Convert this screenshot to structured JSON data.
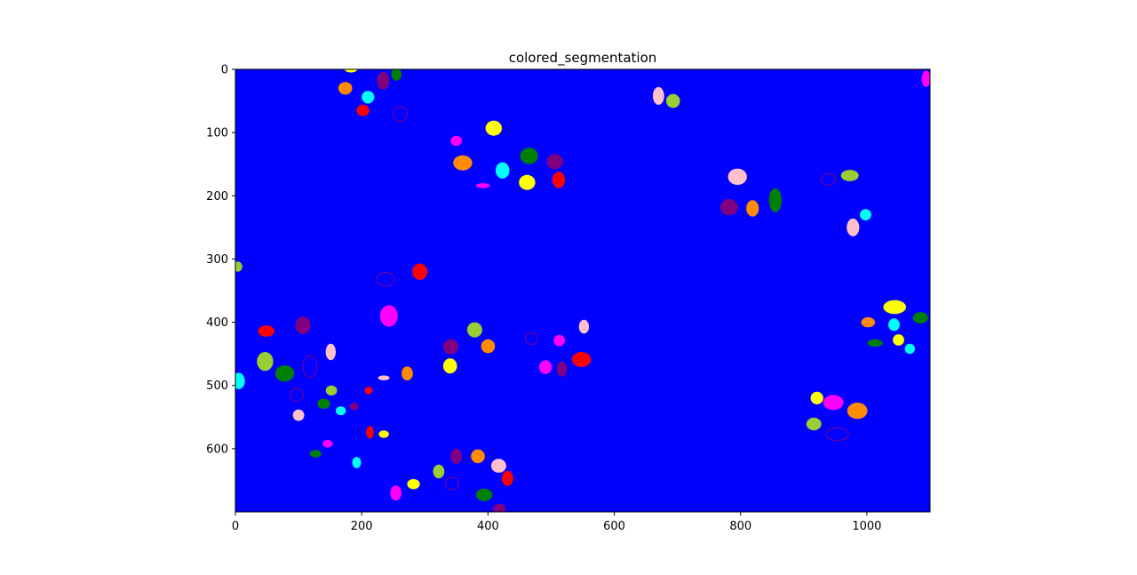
{
  "chart_data": {
    "type": "heatmap",
    "title": "colored_segmentation",
    "xlabel": "",
    "ylabel": "",
    "xlim": [
      0,
      1100
    ],
    "ylim": [
      700,
      0
    ],
    "x_ticks": [
      0,
      200,
      400,
      600,
      800,
      1000
    ],
    "y_ticks": [
      0,
      100,
      200,
      300,
      400,
      500,
      600
    ],
    "grid": false,
    "background_color": "#0000ff",
    "segment_colors": {
      "yellow": "#ffff00",
      "orange": "#ff8c00",
      "red": "#ff0000",
      "green": "#008000",
      "magenta": "#ff00ff",
      "cyan": "#00ffff",
      "pink": "#ffc0cb",
      "yellowgreen": "#9acd32",
      "purple": "#800080"
    },
    "segments": [
      {
        "x": 183,
        "y": 0,
        "rx": 10,
        "ry": 5,
        "color": "yellow"
      },
      {
        "x": 255,
        "y": 8,
        "rx": 8,
        "ry": 10,
        "color": "green"
      },
      {
        "x": 234,
        "y": 18,
        "rx": 10,
        "ry": 14,
        "color": "purple"
      },
      {
        "x": 174,
        "y": 30,
        "rx": 11,
        "ry": 10,
        "color": "orange"
      },
      {
        "x": 210,
        "y": 44,
        "rx": 10,
        "ry": 10,
        "color": "cyan"
      },
      {
        "x": 202,
        "y": 65,
        "rx": 10,
        "ry": 9,
        "color": "red"
      },
      {
        "x": 261,
        "y": 71,
        "rx": 11,
        "ry": 12,
        "color": "purple",
        "outline": true
      },
      {
        "x": 1094,
        "y": 15,
        "rx": 7,
        "ry": 13,
        "color": "magenta"
      },
      {
        "x": 670,
        "y": 42,
        "rx": 9,
        "ry": 14,
        "color": "pink"
      },
      {
        "x": 693,
        "y": 50,
        "rx": 11,
        "ry": 11,
        "color": "yellowgreen"
      },
      {
        "x": 409,
        "y": 93,
        "rx": 13,
        "ry": 12,
        "color": "yellow"
      },
      {
        "x": 350,
        "y": 113,
        "rx": 9,
        "ry": 8,
        "color": "magenta"
      },
      {
        "x": 360,
        "y": 148,
        "rx": 15,
        "ry": 12,
        "color": "orange"
      },
      {
        "x": 423,
        "y": 160,
        "rx": 11,
        "ry": 13,
        "color": "cyan"
      },
      {
        "x": 465,
        "y": 137,
        "rx": 14,
        "ry": 13,
        "color": "green"
      },
      {
        "x": 506,
        "y": 146,
        "rx": 13,
        "ry": 12,
        "color": "purple"
      },
      {
        "x": 462,
        "y": 179,
        "rx": 13,
        "ry": 12,
        "color": "yellow"
      },
      {
        "x": 512,
        "y": 175,
        "rx": 10,
        "ry": 13,
        "color": "red"
      },
      {
        "x": 392,
        "y": 184,
        "rx": 11,
        "ry": 4,
        "color": "magenta"
      },
      {
        "x": 795,
        "y": 170,
        "rx": 15,
        "ry": 13,
        "color": "pink"
      },
      {
        "x": 782,
        "y": 218,
        "rx": 14,
        "ry": 13,
        "color": "purple"
      },
      {
        "x": 819,
        "y": 220,
        "rx": 10,
        "ry": 13,
        "color": "orange"
      },
      {
        "x": 855,
        "y": 207,
        "rx": 10,
        "ry": 19,
        "color": "green"
      },
      {
        "x": 939,
        "y": 174,
        "rx": 11,
        "ry": 9,
        "color": "purple",
        "outline": true
      },
      {
        "x": 973,
        "y": 168,
        "rx": 14,
        "ry": 9,
        "color": "yellowgreen"
      },
      {
        "x": 998,
        "y": 230,
        "rx": 9,
        "ry": 9,
        "color": "cyan"
      },
      {
        "x": 978,
        "y": 250,
        "rx": 10,
        "ry": 14,
        "color": "pink"
      },
      {
        "x": 4,
        "y": 312,
        "rx": 7,
        "ry": 8,
        "color": "yellowgreen"
      },
      {
        "x": 292,
        "y": 320,
        "rx": 12,
        "ry": 13,
        "color": "red"
      },
      {
        "x": 238,
        "y": 332,
        "rx": 14,
        "ry": 11,
        "color": "purple",
        "outline": true
      },
      {
        "x": 243,
        "y": 390,
        "rx": 14,
        "ry": 17,
        "color": "magenta"
      },
      {
        "x": 49,
        "y": 414,
        "rx": 13,
        "ry": 9,
        "color": "red"
      },
      {
        "x": 107,
        "y": 405,
        "rx": 12,
        "ry": 14,
        "color": "purple"
      },
      {
        "x": 151,
        "y": 447,
        "rx": 8,
        "ry": 13,
        "color": "pink"
      },
      {
        "x": 47,
        "y": 462,
        "rx": 13,
        "ry": 15,
        "color": "yellowgreen"
      },
      {
        "x": 78,
        "y": 481,
        "rx": 15,
        "ry": 13,
        "color": "green"
      },
      {
        "x": 118,
        "y": 470,
        "rx": 11,
        "ry": 17,
        "color": "purple",
        "outline": true
      },
      {
        "x": 5,
        "y": 493,
        "rx": 10,
        "ry": 13,
        "color": "cyan"
      },
      {
        "x": 97,
        "y": 515,
        "rx": 10,
        "ry": 10,
        "color": "purple",
        "outline": true
      },
      {
        "x": 152,
        "y": 508,
        "rx": 9,
        "ry": 8,
        "color": "yellowgreen"
      },
      {
        "x": 140,
        "y": 529,
        "rx": 10,
        "ry": 8,
        "color": "green"
      },
      {
        "x": 167,
        "y": 540,
        "rx": 8,
        "ry": 7,
        "color": "cyan"
      },
      {
        "x": 188,
        "y": 533,
        "rx": 7,
        "ry": 6,
        "color": "purple"
      },
      {
        "x": 211,
        "y": 508,
        "rx": 6,
        "ry": 6,
        "color": "red"
      },
      {
        "x": 100,
        "y": 547,
        "rx": 9,
        "ry": 9,
        "color": "pink"
      },
      {
        "x": 235,
        "y": 488,
        "rx": 9,
        "ry": 4,
        "color": "pink"
      },
      {
        "x": 272,
        "y": 481,
        "rx": 9,
        "ry": 11,
        "color": "orange"
      },
      {
        "x": 213,
        "y": 574,
        "rx": 6,
        "ry": 10,
        "color": "red"
      },
      {
        "x": 235,
        "y": 577,
        "rx": 8,
        "ry": 6,
        "color": "yellow"
      },
      {
        "x": 146,
        "y": 592,
        "rx": 8,
        "ry": 6,
        "color": "magenta"
      },
      {
        "x": 127,
        "y": 608,
        "rx": 9,
        "ry": 6,
        "color": "green"
      },
      {
        "x": 192,
        "y": 622,
        "rx": 7,
        "ry": 9,
        "color": "cyan"
      },
      {
        "x": 341,
        "y": 439,
        "rx": 12,
        "ry": 12,
        "color": "purple"
      },
      {
        "x": 379,
        "y": 412,
        "rx": 12,
        "ry": 12,
        "color": "yellowgreen"
      },
      {
        "x": 400,
        "y": 438,
        "rx": 11,
        "ry": 11,
        "color": "orange"
      },
      {
        "x": 340,
        "y": 469,
        "rx": 11,
        "ry": 12,
        "color": "yellow"
      },
      {
        "x": 469,
        "y": 426,
        "rx": 10,
        "ry": 9,
        "color": "purple",
        "outline": true
      },
      {
        "x": 513,
        "y": 429,
        "rx": 9,
        "ry": 9,
        "color": "magenta"
      },
      {
        "x": 552,
        "y": 407,
        "rx": 8,
        "ry": 11,
        "color": "pink"
      },
      {
        "x": 491,
        "y": 471,
        "rx": 10,
        "ry": 11,
        "color": "magenta"
      },
      {
        "x": 517,
        "y": 474,
        "rx": 8,
        "ry": 12,
        "color": "purple"
      },
      {
        "x": 548,
        "y": 459,
        "rx": 15,
        "ry": 12,
        "color": "red"
      },
      {
        "x": 350,
        "y": 612,
        "rx": 9,
        "ry": 12,
        "color": "purple"
      },
      {
        "x": 384,
        "y": 612,
        "rx": 11,
        "ry": 11,
        "color": "orange"
      },
      {
        "x": 417,
        "y": 627,
        "rx": 12,
        "ry": 11,
        "color": "pink"
      },
      {
        "x": 322,
        "y": 636,
        "rx": 9,
        "ry": 11,
        "color": "yellowgreen"
      },
      {
        "x": 343,
        "y": 655,
        "rx": 10,
        "ry": 10,
        "color": "purple",
        "outline": true
      },
      {
        "x": 431,
        "y": 647,
        "rx": 9,
        "ry": 12,
        "color": "red"
      },
      {
        "x": 282,
        "y": 656,
        "rx": 10,
        "ry": 8,
        "color": "yellow"
      },
      {
        "x": 254,
        "y": 670,
        "rx": 9,
        "ry": 12,
        "color": "magenta"
      },
      {
        "x": 394,
        "y": 673,
        "rx": 13,
        "ry": 10,
        "color": "green"
      },
      {
        "x": 418,
        "y": 695,
        "rx": 10,
        "ry": 8,
        "color": "purple"
      },
      {
        "x": 1044,
        "y": 376,
        "rx": 18,
        "ry": 11,
        "color": "yellow"
      },
      {
        "x": 1085,
        "y": 393,
        "rx": 12,
        "ry": 9,
        "color": "green"
      },
      {
        "x": 1002,
        "y": 400,
        "rx": 11,
        "ry": 8,
        "color": "orange"
      },
      {
        "x": 1043,
        "y": 404,
        "rx": 9,
        "ry": 10,
        "color": "cyan"
      },
      {
        "x": 1050,
        "y": 428,
        "rx": 9,
        "ry": 9,
        "color": "yellow"
      },
      {
        "x": 1013,
        "y": 433,
        "rx": 12,
        "ry": 6,
        "color": "green"
      },
      {
        "x": 1068,
        "y": 442,
        "rx": 8,
        "ry": 8,
        "color": "cyan"
      },
      {
        "x": 921,
        "y": 520,
        "rx": 10,
        "ry": 10,
        "color": "yellow"
      },
      {
        "x": 947,
        "y": 527,
        "rx": 16,
        "ry": 12,
        "color": "magenta"
      },
      {
        "x": 985,
        "y": 540,
        "rx": 16,
        "ry": 13,
        "color": "orange"
      },
      {
        "x": 916,
        "y": 561,
        "rx": 12,
        "ry": 10,
        "color": "yellowgreen"
      },
      {
        "x": 953,
        "y": 577,
        "rx": 18,
        "ry": 10,
        "color": "purple",
        "outline": true
      }
    ]
  }
}
